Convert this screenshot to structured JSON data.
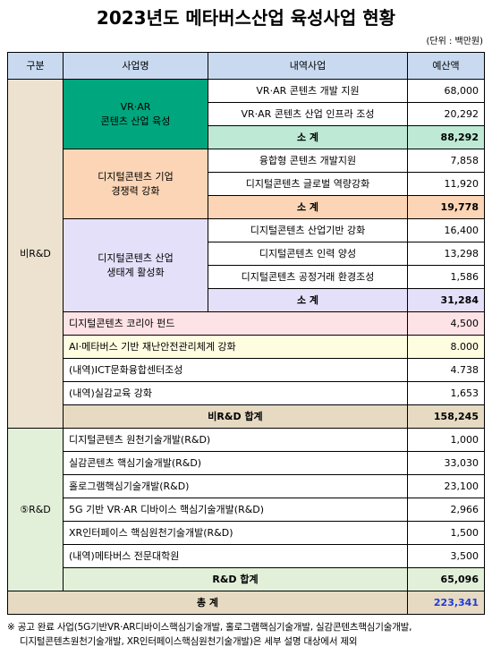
{
  "title": "2023년도 메타버스산업 육성사업 현황",
  "unit": "(단위 : 백만원)",
  "colors": {
    "header_bg": "#c9daf0",
    "non_rd_bg": "#ede2cf",
    "vr_ar_bg": "#00a67d",
    "vr_ar_subtotal_bg": "#bde9d5",
    "competitiveness_bg": "#fbd5b5",
    "ecosystem_bg": "#e4e0fa",
    "fund_bg": "#fde2e6",
    "ai_bg": "#fffde0",
    "non_rd_total_bg": "#e6dac3",
    "rd_bg": "#e2efd9",
    "grand_total_bg": "#e6dac3",
    "grand_total_value": "#1f3bd9"
  },
  "table": {
    "header": {
      "category": "구분",
      "project": "사업명",
      "sub_project": "내역사업",
      "budget": "예산액"
    },
    "non_rd": {
      "label": "비R&D",
      "groups": [
        {
          "name_lines": [
            "VR·AR",
            "콘텐츠 산업 육성"
          ],
          "items": [
            {
              "name": "VR·AR 콘텐츠 개발 지원",
              "budget": "68,000"
            },
            {
              "name": "VR·AR 콘텐츠 산업 인프라 조성",
              "budget": "20,292"
            }
          ],
          "subtotal_label": "소 계",
          "subtotal": "88,292"
        },
        {
          "name_lines": [
            "디지털콘텐츠 기업",
            "경쟁력 강화"
          ],
          "items": [
            {
              "name": "융합형 콘텐츠 개발지원",
              "budget": "7,858"
            },
            {
              "name": "디지털콘텐츠 글로벌 역량강화",
              "budget": "11,920"
            }
          ],
          "subtotal_label": "소 계",
          "subtotal": "19,778"
        },
        {
          "name_lines": [
            "디지털콘텐츠 산업",
            "생태계 활성화"
          ],
          "items": [
            {
              "name": "디지털콘텐츠 산업기반 강화",
              "budget": "16,400"
            },
            {
              "name": "디지털콘텐츠 인력 양성",
              "budget": "13,298"
            },
            {
              "name": "디지털콘텐츠 공정거래 환경조성",
              "budget": "1,586"
            }
          ],
          "subtotal_label": "소 계",
          "subtotal": "31,284"
        }
      ],
      "single_projects": [
        {
          "name": "디지털콘텐츠 코리아 펀드",
          "budget": "4,500"
        },
        {
          "name": "AI·메타버스 기반 재난안전관리체계 강화",
          "budget": "8.000"
        },
        {
          "name": "(내역)ICT문화융합센터조성",
          "budget": "4.738"
        },
        {
          "name": "(내역)실감교육 강화",
          "budget": "1,653"
        }
      ],
      "total_label": "비R&D 합계",
      "total": "158,245"
    },
    "rd": {
      "label": "⑤R&D",
      "projects": [
        {
          "name": "디지털콘텐츠 원천기술개발(R&D)",
          "budget": "1,000"
        },
        {
          "name": "실감콘텐츠 핵심기술개발(R&D)",
          "budget": "33,030"
        },
        {
          "name": "홀로그램핵심기술개발(R&D)",
          "budget": "23,100"
        },
        {
          "name": "5G 기반 VR·AR 디바이스 핵심기술개발(R&D)",
          "budget": "2,966"
        },
        {
          "name": "XR인터페이스 핵심원천기술개발(R&D)",
          "budget": "1,500"
        },
        {
          "name": "(내역)메타버스 전문대학원",
          "budget": "3,500"
        }
      ],
      "total_label": "R&D 합계",
      "total": "65,096"
    },
    "grand_total_label": "총 계",
    "grand_total": "223,341"
  },
  "footnote_lines": [
    "※ 공고 완료 사업(5G기반VR·AR디바이스핵심기술개발, 홀로그램핵심기술개발, 실감콘텐츠핵심기술개발,",
    "디지털콘텐츠원천기술개발, XR인터페이스핵심원천기술개발)은 세부 설명 대상에서 제외"
  ]
}
